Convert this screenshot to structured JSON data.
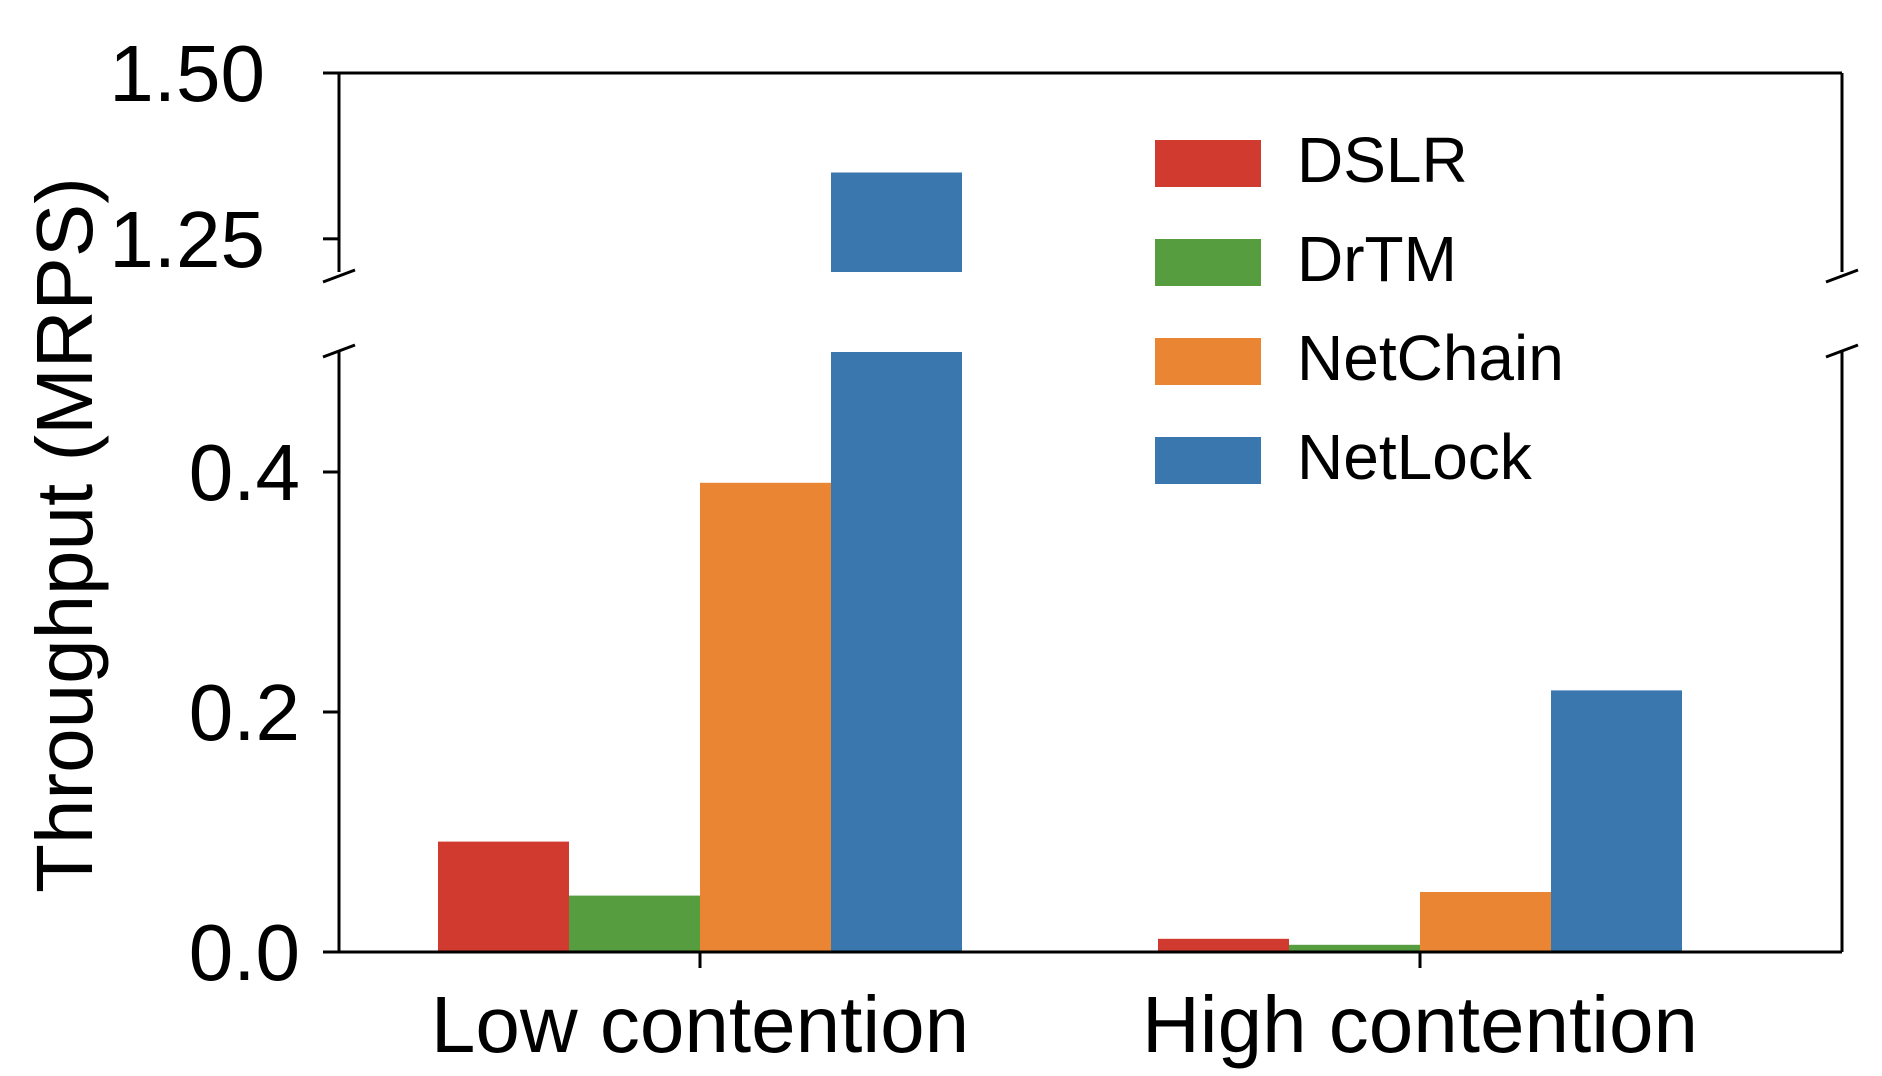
{
  "chart_data": {
    "type": "bar",
    "broken_axis": true,
    "ylabel": "Throughput (MRPS)",
    "categories": [
      "Low contention",
      "High contention"
    ],
    "series": [
      {
        "name": "DSLR",
        "color": "#d03a2f",
        "values": [
          0.092,
          0.011
        ]
      },
      {
        "name": "DrTM",
        "color": "#559d3e",
        "values": [
          0.047,
          0.006
        ]
      },
      {
        "name": "NetChain",
        "color": "#ea8534",
        "values": [
          0.391,
          0.05
        ]
      },
      {
        "name": "NetLock",
        "color": "#3a77af",
        "values": [
          1.35,
          0.218
        ]
      }
    ],
    "lower_panel": {
      "ylim": [
        0,
        0.5
      ],
      "yticks": [
        "0.0",
        "0.2",
        "0.4"
      ]
    },
    "upper_panel": {
      "ylim": [
        1.2,
        1.5
      ],
      "yticks": [
        "1.25",
        "1.50"
      ]
    },
    "legend_position": "top-right",
    "grid": false
  }
}
